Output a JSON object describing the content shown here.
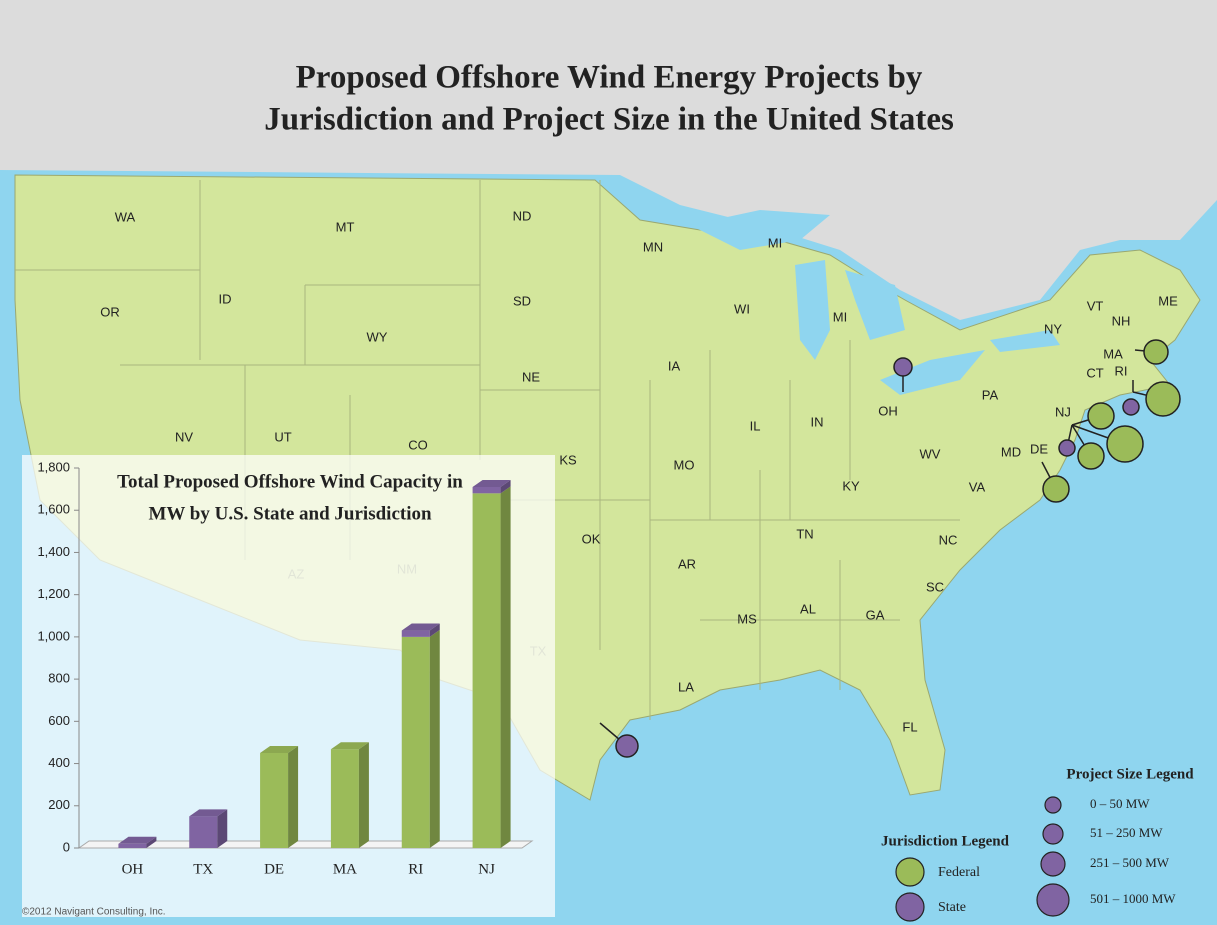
{
  "title": [
    "Proposed Offshore Wind Energy Projects by",
    "Jurisdiction and Project Size in the United States"
  ],
  "map": {
    "states": [
      "WA",
      "MT",
      "ND",
      "MN",
      "MI",
      "OR",
      "ID",
      "SD",
      "WI",
      "MI",
      "WY",
      "ME",
      "VT",
      "NH",
      "NY",
      "MA",
      "CT",
      "RI",
      "NE",
      "IA",
      "OH",
      "PA",
      "NJ",
      "NV",
      "UT",
      "CO",
      "KS",
      "MO",
      "IL",
      "IN",
      "MD",
      "DE",
      "WV",
      "KY",
      "VA",
      "OK",
      "AR",
      "TN",
      "NC",
      "SC",
      "AZ",
      "NM",
      "TX",
      "MS",
      "AL",
      "GA",
      "LA",
      "FL"
    ]
  },
  "project_size_legend": {
    "title": "Project Size Legend",
    "items": [
      "0 – 50 MW",
      "51 – 250 MW",
      "251 – 500 MW",
      "501 – 1000 MW"
    ]
  },
  "jurisdiction_legend": {
    "title": "Jurisdiction  Legend"
  },
  "credit": "©2012 Navigant Consulting, Inc.",
  "chart_data": {
    "type": "stacked_bar_3d",
    "title": [
      "Total Proposed Offshore Wind Capacity in",
      "MW by U.S. State and Jurisdiction"
    ],
    "categories": [
      "OH",
      "TX",
      "DE",
      "MA",
      "RI",
      "NJ"
    ],
    "series": [
      {
        "name": "Federal",
        "color": "#9bbb59",
        "values": [
          0,
          0,
          450,
          468,
          1000,
          1680
        ]
      },
      {
        "name": "State",
        "color": "#8064a2",
        "values": [
          20,
          150,
          0,
          0,
          30,
          30
        ]
      }
    ],
    "ylim": [
      0,
      1800
    ],
    "yticks": [
      0,
      200,
      400,
      600,
      800,
      {
        "value": 1000,
        "label": "1,000"
      },
      {
        "value": 1200,
        "label": "1,200"
      },
      {
        "value": 1400,
        "label": "1,400"
      },
      {
        "value": 1600,
        "label": "1,600"
      },
      {
        "value": 1800,
        "label": "1,800"
      }
    ]
  }
}
